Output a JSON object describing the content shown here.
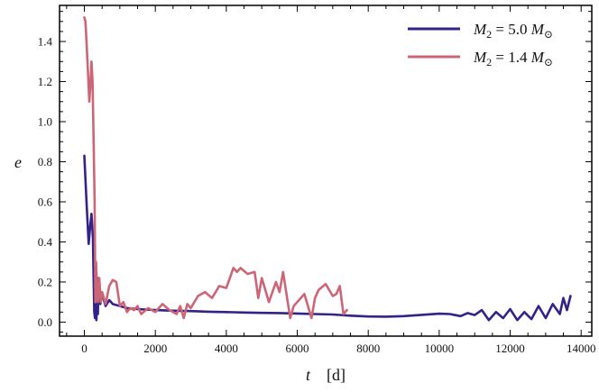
{
  "chart_data": {
    "type": "line",
    "title": "",
    "xlabel_var": "t",
    "xlabel_unit": "[d]",
    "ylabel": "e",
    "xlim": [
      -700,
      14300
    ],
    "ylim": [
      -0.07,
      1.58
    ],
    "xticks": [
      0,
      2000,
      4000,
      6000,
      8000,
      10000,
      12000,
      14000
    ],
    "yticks": [
      0.0,
      0.2,
      0.4,
      0.6,
      0.8,
      1.0,
      1.2,
      1.4
    ],
    "grid": false,
    "legend_position": "top-right",
    "legend": [
      {
        "label": "M2 = 5.0 M☉",
        "math": {
          "sym": "M",
          "sub": "2",
          "eq": " = 5.0 ",
          "unit": "M",
          "unit_sub": "⊙"
        }
      },
      {
        "label": "M2 = 1.4 M☉",
        "math": {
          "sym": "M",
          "sub": "2",
          "eq": " = 1.4 ",
          "unit": "M",
          "unit_sub": "⊙"
        }
      }
    ],
    "series": [
      {
        "color": "#332288",
        "x": [
          0,
          60,
          120,
          160,
          200,
          240,
          280,
          300,
          320,
          340,
          360,
          380,
          400,
          450,
          500,
          600,
          700,
          800,
          1000,
          1200,
          1500,
          2000,
          2500,
          3000,
          3500,
          4000,
          4500,
          5000,
          5500,
          6000,
          6500,
          7000,
          7500,
          8000,
          8500,
          9000,
          9500,
          10000,
          10300,
          10600,
          10800,
          11000,
          11200,
          11400,
          11600,
          11800,
          12000,
          12200,
          12400,
          12600,
          12800,
          13000,
          13200,
          13400,
          13500,
          13600,
          13700
        ],
        "y": [
          0.83,
          0.6,
          0.39,
          0.47,
          0.54,
          0.42,
          0.05,
          0.02,
          0.3,
          0.01,
          0.2,
          0.04,
          0.22,
          0.09,
          0.14,
          0.08,
          0.11,
          0.09,
          0.08,
          0.07,
          0.065,
          0.06,
          0.057,
          0.055,
          0.052,
          0.05,
          0.048,
          0.046,
          0.045,
          0.043,
          0.04,
          0.038,
          0.032,
          0.028,
          0.027,
          0.03,
          0.036,
          0.042,
          0.04,
          0.03,
          0.045,
          0.035,
          0.06,
          0.01,
          0.05,
          0.02,
          0.065,
          0.01,
          0.05,
          0.015,
          0.08,
          0.02,
          0.09,
          0.04,
          0.12,
          0.06,
          0.13
        ]
      },
      {
        "color": "#CC6677",
        "x": [
          0,
          30,
          60,
          100,
          140,
          170,
          200,
          230,
          260,
          290,
          310,
          330,
          350,
          380,
          420,
          460,
          500,
          600,
          700,
          800,
          900,
          1000,
          1100,
          1200,
          1300,
          1400,
          1500,
          1600,
          1800,
          2000,
          2200,
          2400,
          2600,
          2700,
          2800,
          2900,
          3000,
          3200,
          3400,
          3600,
          3800,
          4000,
          4200,
          4300,
          4400,
          4600,
          4800,
          4900,
          5000,
          5200,
          5400,
          5500,
          5600,
          5800,
          5900,
          6000,
          6200,
          6400,
          6500,
          6600,
          6800,
          7000,
          7100,
          7200,
          7300,
          7400
        ],
        "y": [
          1.52,
          1.5,
          1.4,
          1.25,
          1.1,
          1.18,
          1.3,
          1.2,
          0.9,
          0.6,
          0.1,
          0.3,
          0.2,
          0.1,
          0.22,
          0.1,
          0.15,
          0.09,
          0.18,
          0.21,
          0.2,
          0.08,
          0.1,
          0.05,
          0.07,
          0.06,
          0.08,
          0.04,
          0.07,
          0.05,
          0.09,
          0.06,
          0.04,
          0.08,
          0.02,
          0.09,
          0.07,
          0.13,
          0.15,
          0.12,
          0.18,
          0.17,
          0.27,
          0.25,
          0.27,
          0.24,
          0.25,
          0.12,
          0.22,
          0.1,
          0.2,
          0.15,
          0.25,
          0.02,
          0.08,
          0.1,
          0.14,
          0.02,
          0.12,
          0.16,
          0.19,
          0.13,
          0.14,
          0.18,
          0.04,
          0.06
        ]
      }
    ]
  }
}
